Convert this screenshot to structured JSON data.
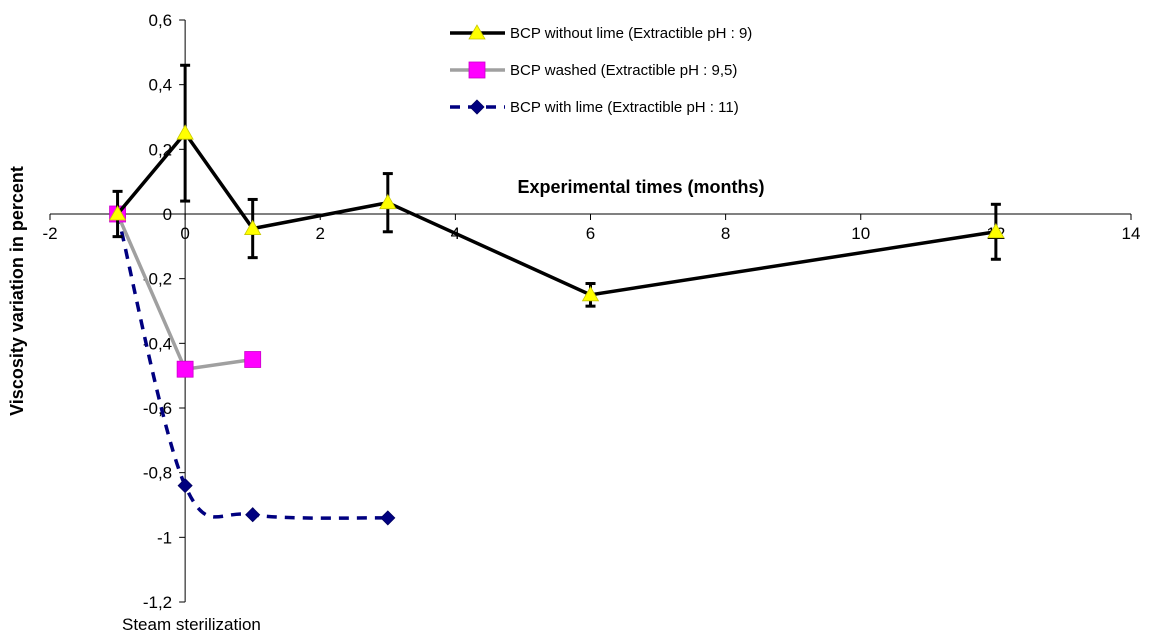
{
  "chart_data": {
    "type": "line",
    "xlabel": "Experimental times (months)",
    "ylabel": "Viscosity variation in percent",
    "xlim": [
      -2,
      14
    ],
    "ylim": [
      -1.2,
      0.6
    ],
    "x_ticks": [
      "-2",
      "0",
      "2",
      "4",
      "6",
      "8",
      "10",
      "12",
      "14"
    ],
    "y_ticks": [
      "0,6",
      "0,4",
      "0,2",
      "0",
      "-0,2",
      "-0,4",
      "-0,6",
      "-0,8",
      "-1",
      "-1,2"
    ],
    "annotation": "Steam sterilization",
    "grid": false,
    "legend_position": "top-right",
    "series": [
      {
        "name": "BCP without lime (Extractible pH : 9)",
        "color": "#000000",
        "line_style": "solid",
        "marker": "triangle",
        "marker_color": "#ffff00",
        "x": [
          -1,
          0,
          1,
          3,
          6,
          12
        ],
        "y": [
          0.0,
          0.25,
          -0.045,
          0.035,
          -0.25,
          -0.055
        ],
        "error": [
          0.07,
          0.21,
          0.09,
          0.09,
          0.035,
          0.085
        ]
      },
      {
        "name": "BCP washed (Extractible pH : 9,5)",
        "color": "#a0a0a0",
        "line_style": "solid",
        "marker": "square",
        "marker_color": "#ff00ff",
        "x": [
          -1,
          0,
          1
        ],
        "y": [
          0.0,
          -0.48,
          -0.45
        ]
      },
      {
        "name": "BCP with lime (Extractible pH : 11)",
        "color": "#000080",
        "line_style": "dashed",
        "marker": "diamond",
        "marker_color": "#000080",
        "x": [
          -1,
          0,
          1,
          3
        ],
        "y": [
          0.0,
          -0.84,
          -0.93,
          -0.94
        ]
      }
    ]
  }
}
